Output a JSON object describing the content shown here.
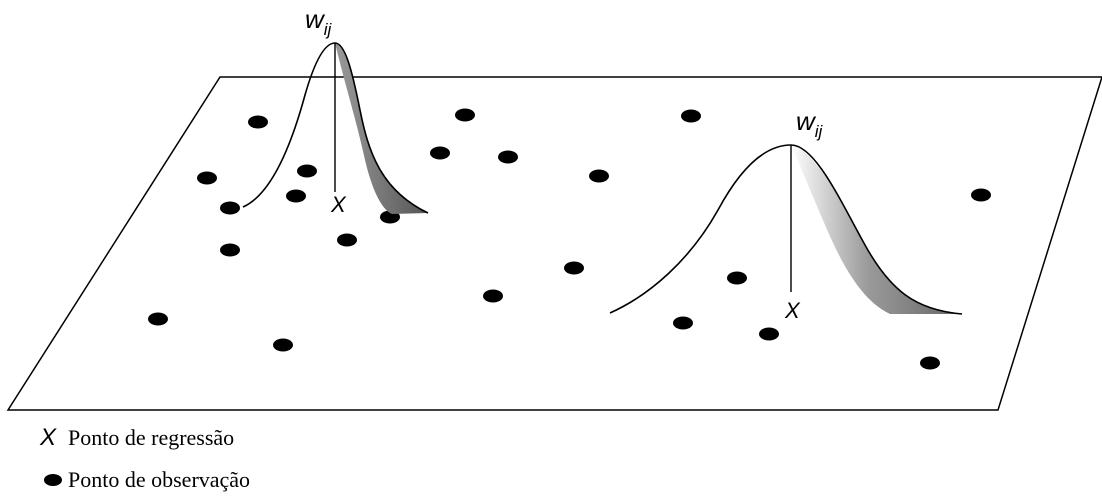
{
  "kernels": [
    {
      "weight_label": "w",
      "weight_subscript": "ij",
      "point_label": "X"
    },
    {
      "weight_label": "w",
      "weight_subscript": "ij",
      "point_label": "X"
    }
  ],
  "legend": {
    "regression_symbol": "X",
    "regression_label": "Ponto de regressão",
    "observation_label": "Ponto de observação"
  },
  "colors": {
    "ink": "#000000",
    "shade": "#6b6b6b"
  }
}
